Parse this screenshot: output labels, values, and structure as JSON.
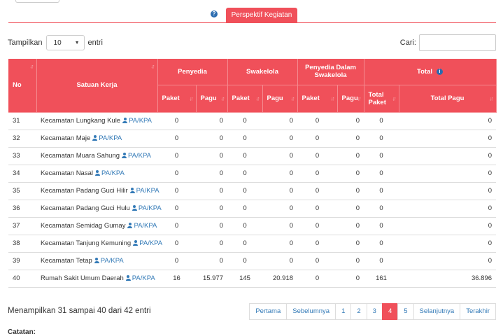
{
  "tab": {
    "help_icon": "?",
    "label": "Perspektif Kegiatan"
  },
  "length_control": {
    "prefix": "Tampilkan",
    "value": "10",
    "suffix": "entri"
  },
  "search": {
    "label": "Cari:",
    "value": "",
    "placeholder": ""
  },
  "table": {
    "headers": {
      "no": "No",
      "satuan_kerja": "Satuan Kerja",
      "penyedia": "Penyedia",
      "swakelola": "Swakelola",
      "penyedia_dalam_swakelola": "Penyedia Dalam Swakelola",
      "total": "Total",
      "total_info_icon": "i",
      "paket": "Paket",
      "pagu": "Pagu",
      "total_paket": "Total Paket",
      "total_pagu": "Total Pagu"
    },
    "role_label": "PA/KPA",
    "rows": [
      {
        "no": "31",
        "satker": "Kecamatan Lungkang Kule",
        "penyedia_paket": "0",
        "penyedia_pagu": "0",
        "swakelola_paket": "0",
        "swakelola_pagu": "0",
        "pds_paket": "0",
        "pds_pagu": "0",
        "total_paket": "0",
        "total_pagu": "0"
      },
      {
        "no": "32",
        "satker": "Kecamatan Maje",
        "penyedia_paket": "0",
        "penyedia_pagu": "0",
        "swakelola_paket": "0",
        "swakelola_pagu": "0",
        "pds_paket": "0",
        "pds_pagu": "0",
        "total_paket": "0",
        "total_pagu": "0"
      },
      {
        "no": "33",
        "satker": "Kecamatan Muara Sahung",
        "penyedia_paket": "0",
        "penyedia_pagu": "0",
        "swakelola_paket": "0",
        "swakelola_pagu": "0",
        "pds_paket": "0",
        "pds_pagu": "0",
        "total_paket": "0",
        "total_pagu": "0"
      },
      {
        "no": "34",
        "satker": "Kecamatan Nasal",
        "penyedia_paket": "0",
        "penyedia_pagu": "0",
        "swakelola_paket": "0",
        "swakelola_pagu": "0",
        "pds_paket": "0",
        "pds_pagu": "0",
        "total_paket": "0",
        "total_pagu": "0"
      },
      {
        "no": "35",
        "satker": "Kecamatan Padang Guci Hilir",
        "penyedia_paket": "0",
        "penyedia_pagu": "0",
        "swakelola_paket": "0",
        "swakelola_pagu": "0",
        "pds_paket": "0",
        "pds_pagu": "0",
        "total_paket": "0",
        "total_pagu": "0"
      },
      {
        "no": "36",
        "satker": "Kecamatan Padang Guci Hulu",
        "penyedia_paket": "0",
        "penyedia_pagu": "0",
        "swakelola_paket": "0",
        "swakelola_pagu": "0",
        "pds_paket": "0",
        "pds_pagu": "0",
        "total_paket": "0",
        "total_pagu": "0"
      },
      {
        "no": "37",
        "satker": "Kecamatan Semidag Gumay",
        "penyedia_paket": "0",
        "penyedia_pagu": "0",
        "swakelola_paket": "0",
        "swakelola_pagu": "0",
        "pds_paket": "0",
        "pds_pagu": "0",
        "total_paket": "0",
        "total_pagu": "0"
      },
      {
        "no": "38",
        "satker": "Kecamatan Tanjung Kemuning",
        "penyedia_paket": "0",
        "penyedia_pagu": "0",
        "swakelola_paket": "0",
        "swakelola_pagu": "0",
        "pds_paket": "0",
        "pds_pagu": "0",
        "total_paket": "0",
        "total_pagu": "0"
      },
      {
        "no": "39",
        "satker": "Kecamatan Tetap",
        "penyedia_paket": "0",
        "penyedia_pagu": "0",
        "swakelola_paket": "0",
        "swakelola_pagu": "0",
        "pds_paket": "0",
        "pds_pagu": "0",
        "total_paket": "0",
        "total_pagu": "0"
      },
      {
        "no": "40",
        "satker": "Rumah Sakit Umum Daerah",
        "penyedia_paket": "16",
        "penyedia_pagu": "15.977",
        "swakelola_paket": "145",
        "swakelola_pagu": "20.918",
        "pds_paket": "0",
        "pds_pagu": "0",
        "total_paket": "161",
        "total_pagu": "36.896"
      }
    ]
  },
  "info_text": "Menampilkan 31 sampai 40 dari 42 entri",
  "pagination": {
    "first": "Pertama",
    "prev": "Sebelumnya",
    "pages": [
      "1",
      "2",
      "3",
      "4",
      "5"
    ],
    "current": "4",
    "next": "Selanjutnya",
    "last": "Terakhir"
  },
  "notes_label": "Catatan:",
  "colors": {
    "accent": "#f0505a",
    "link": "#337ab7",
    "info_icon": "#2b6cb0"
  },
  "icons": {
    "help": "question-circle-icon",
    "info": "info-circle-icon",
    "user": "user-icon",
    "sort": "sort-icon",
    "caret": "caret-down-icon"
  }
}
